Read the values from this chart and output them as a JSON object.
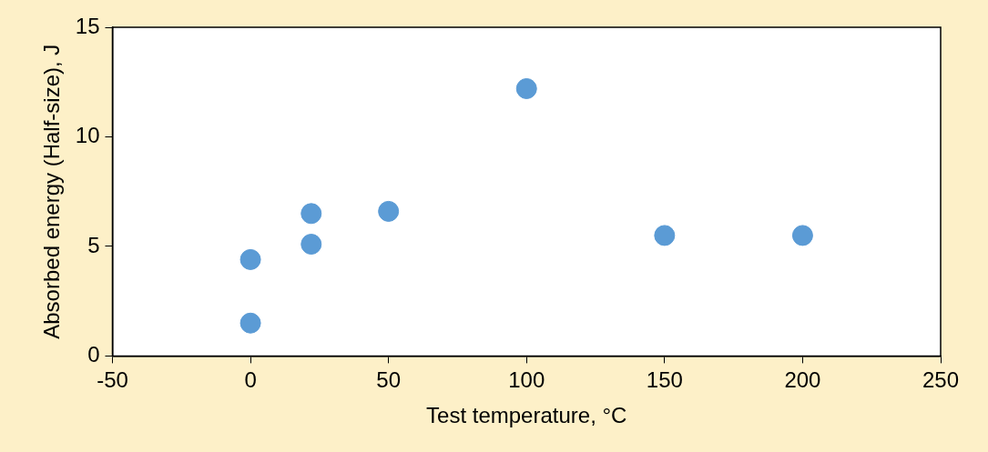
{
  "chart_data": {
    "type": "scatter",
    "xlabel": "Test temperature, °C",
    "ylabel": "Absorbed energy (Half-size), J",
    "series": [
      {
        "color": "#5b9bd5",
        "x": [
          0,
          0,
          22,
          22,
          50,
          100,
          150,
          200
        ],
        "values": [
          4.4,
          1.5,
          6.5,
          5.1,
          6.6,
          12.2,
          5.5,
          5.5
        ]
      }
    ],
    "xlim": [
      -50,
      250
    ],
    "xticks": [
      -50,
      0,
      50,
      100,
      150,
      200,
      250
    ],
    "ylim": [
      0,
      15
    ],
    "yticks": [
      0,
      5,
      10,
      15
    ],
    "grid": false,
    "legend": false,
    "marker": "circle"
  }
}
